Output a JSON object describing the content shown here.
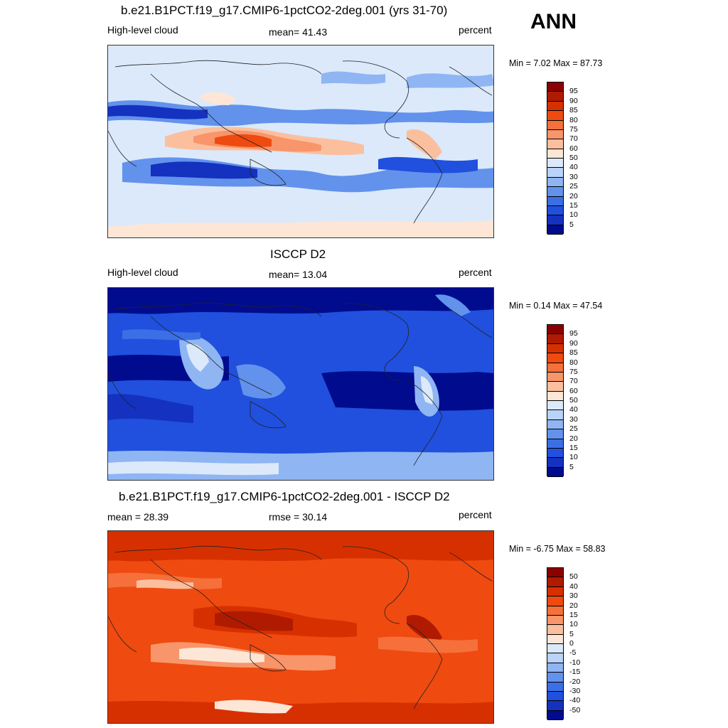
{
  "season": "ANN",
  "panels": [
    {
      "id": "model",
      "title": "b.e21.B1PCT.f19_g17.CMIP6-1pctCO2-2deg.001 (yrs 31-70)",
      "left_label": "High-level cloud",
      "center_label": "mean=  41.43",
      "right_label": "percent",
      "minmax": "Min =   7.02 Max =  87.73",
      "colorbar_labels": [
        "95",
        "90",
        "85",
        "80",
        "75",
        "70",
        "60",
        "50",
        "40",
        "30",
        "25",
        "20",
        "15",
        "10",
        "5"
      ],
      "colorbar_colors": [
        "#8b0000",
        "#b01a00",
        "#d73000",
        "#ef4a10",
        "#f5703a",
        "#f8956a",
        "#fbbf9e",
        "#fde6d6",
        "#dbe9fb",
        "#b9d3f9",
        "#8fb5f3",
        "#6292ec",
        "#3b6fe6",
        "#2050dd",
        "#1431bf",
        "#000b8e"
      ],
      "map_style": "model"
    },
    {
      "id": "obs",
      "title": "ISCCP D2",
      "left_label": "High-level cloud",
      "center_label": "mean=  13.04",
      "right_label": "percent",
      "minmax": "Min =   0.14 Max =  47.54",
      "colorbar_labels": [
        "95",
        "90",
        "85",
        "80",
        "75",
        "70",
        "60",
        "50",
        "40",
        "30",
        "25",
        "20",
        "15",
        "10",
        "5"
      ],
      "colorbar_colors": [
        "#8b0000",
        "#b01a00",
        "#d73000",
        "#ef4a10",
        "#f5703a",
        "#f8956a",
        "#fbbf9e",
        "#fde6d6",
        "#dbe9fb",
        "#b9d3f9",
        "#8fb5f3",
        "#6292ec",
        "#3b6fe6",
        "#2050dd",
        "#1431bf",
        "#000b8e"
      ],
      "map_style": "obs"
    },
    {
      "id": "diff",
      "title": "b.e21.B1PCT.f19_g17.CMIP6-1pctCO2-2deg.001 - ISCCP D2",
      "left_label": "mean =  28.39",
      "center_label": "rmse =  30.14",
      "right_label": "percent",
      "minmax": "Min =  -6.75 Max =  58.83",
      "colorbar_labels": [
        "50",
        "40",
        "30",
        "20",
        "15",
        "10",
        "5",
        "0",
        "-5",
        "-10",
        "-15",
        "-20",
        "-30",
        "-40",
        "-50"
      ],
      "colorbar_colors": [
        "#8b0000",
        "#b01a00",
        "#d73000",
        "#ef4a10",
        "#f5703a",
        "#f8956a",
        "#fbbf9e",
        "#fde6d6",
        "#dbe9fb",
        "#b9d3f9",
        "#8fb5f3",
        "#6292ec",
        "#3b6fe6",
        "#2050dd",
        "#1431bf",
        "#000b8e"
      ],
      "map_style": "diff"
    }
  ]
}
